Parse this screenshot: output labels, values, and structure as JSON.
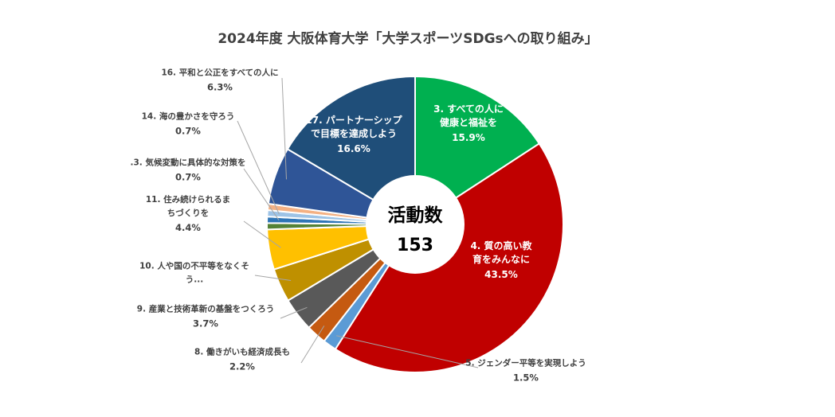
{
  "chart_data": {
    "type": "pie",
    "title": "2024年度 大阪体育大学「大学スポーツSDGsへの取り組み」",
    "center": {
      "label": "活動数",
      "value": "153"
    },
    "slices": [
      {
        "label_lines": [
          "3. すべての人に",
          "健康と福祉を"
        ],
        "value_label": "15.9%",
        "value": 15.9,
        "color": "#00b050",
        "label_position": "inside"
      },
      {
        "label_lines": [
          "4. 質の高い教",
          "育をみんなに"
        ],
        "value_label": "43.5%",
        "value": 43.5,
        "color": "#c00000",
        "label_position": "inside"
      },
      {
        "label_lines": [
          "5. ジェンダー平等を実現しよう"
        ],
        "value_label": "1.5%",
        "value": 1.5,
        "color": "#5b9bd5",
        "label_position": "outside"
      },
      {
        "label_lines": [
          "8. 働きがいも経済成長も"
        ],
        "value_label": "2.2%",
        "value": 2.2,
        "color": "#c55a11",
        "label_position": "outside"
      },
      {
        "label_lines": [
          "9. 産業と技術革新の基盤をつくろう"
        ],
        "value_label": "3.7%",
        "value": 3.7,
        "color": "#595959",
        "label_position": "outside"
      },
      {
        "label_lines": [
          "10. 人や国の不平等をなくそ",
          "う..."
        ],
        "value_label": "",
        "value": 3.7,
        "color": "#bf9000",
        "label_position": "outside"
      },
      {
        "label_lines": [
          "11. 住み続けられるま",
          "ちづくりを"
        ],
        "value_label": "4.4%",
        "value": 4.4,
        "color": "#ffc000",
        "label_position": "outside"
      },
      {
        "label_lines": [],
        "value_label": "",
        "value": 0.7,
        "color": "#548235",
        "label_position": "none"
      },
      {
        "label_lines": [
          ".3. 気候変動に具体的な対策を"
        ],
        "value_label": "0.7%",
        "value": 0.7,
        "color": "#2e75b6",
        "label_position": "outside"
      },
      {
        "label_lines": [
          "14. 海の豊かさを守ろう"
        ],
        "value_label": "0.7%",
        "value": 0.7,
        "color": "#9dc3e6",
        "label_position": "outside"
      },
      {
        "label_lines": [],
        "value_label": "",
        "value": 0.7,
        "color": "#f4b183",
        "label_position": "none"
      },
      {
        "label_lines": [
          "16. 平和と公正をすべての人に"
        ],
        "value_label": "6.3%",
        "value": 6.3,
        "color": "#2f5597",
        "label_position": "outside"
      },
      {
        "label_lines": [
          "17. パートナーシップ",
          "で目標を達成しよう"
        ],
        "value_label": "16.6%",
        "value": 16.6,
        "color": "#1f4e79",
        "label_position": "inside"
      }
    ]
  }
}
